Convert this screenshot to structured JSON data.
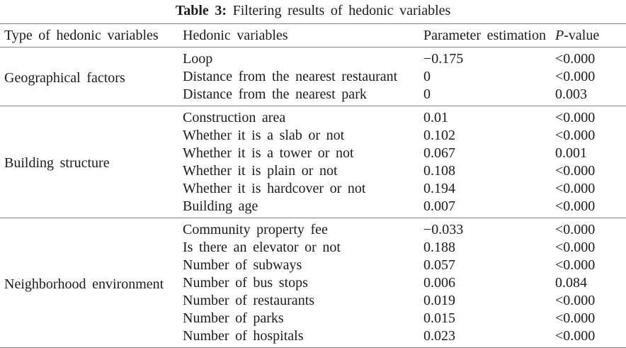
{
  "title": {
    "label": "Table 3:",
    "text": " Filtering results of hedonic variables"
  },
  "table": {
    "columns": [
      "Type of hedonic variables",
      "Hedonic variables",
      "Parameter estimation"
    ],
    "pvalue_header": {
      "italic": "P",
      "rest": "-value"
    },
    "rule_color": "#828282",
    "groups": [
      {
        "type": "Geographical factors",
        "rows": [
          {
            "variable": "Loop",
            "estimate": "−0.175",
            "p": "<0.000"
          },
          {
            "variable": "Distance from the nearest restaurant",
            "estimate": "0",
            "p": "<0.000"
          },
          {
            "variable": "Distance from the nearest park",
            "estimate": "0",
            "p": "0.003"
          }
        ]
      },
      {
        "type": "Building structure",
        "rows": [
          {
            "variable": "Construction area",
            "estimate": "0.01",
            "p": "<0.000"
          },
          {
            "variable": "Whether it is a slab or not",
            "estimate": "0.102",
            "p": "<0.000"
          },
          {
            "variable": "Whether it is a tower or not",
            "estimate": "0.067",
            "p": "0.001"
          },
          {
            "variable": "Whether it is plain or not",
            "estimate": "0.108",
            "p": "<0.000"
          },
          {
            "variable": "Whether it is hardcover or not",
            "estimate": "0.194",
            "p": "<0.000"
          },
          {
            "variable": "Building age",
            "estimate": "0.007",
            "p": "<0.000"
          }
        ]
      },
      {
        "type": "Neighborhood environment",
        "rows": [
          {
            "variable": "Community property fee",
            "estimate": "−0.033",
            "p": "<0.000"
          },
          {
            "variable": "Is there an elevator or not",
            "estimate": "0.188",
            "p": "<0.000"
          },
          {
            "variable": "Number of subways",
            "estimate": "0.057",
            "p": "<0.000"
          },
          {
            "variable": "Number of bus stops",
            "estimate": "0.006",
            "p": "0.084"
          },
          {
            "variable": "Number of restaurants",
            "estimate": "0.019",
            "p": "<0.000"
          },
          {
            "variable": "Number of parks",
            "estimate": "0.015",
            "p": "<0.000"
          },
          {
            "variable": "Number of hospitals",
            "estimate": "0.023",
            "p": "<0.000"
          }
        ]
      }
    ]
  }
}
